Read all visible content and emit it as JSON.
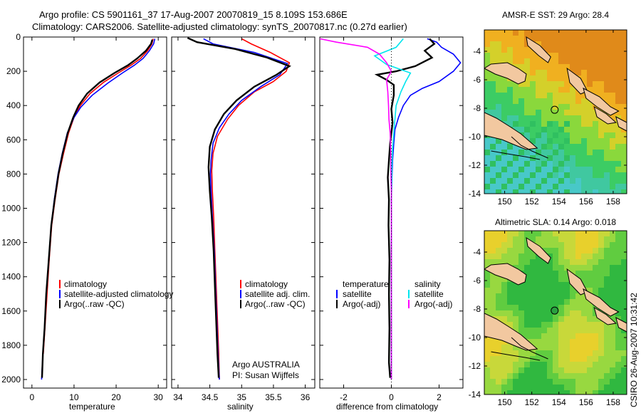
{
  "header": {
    "line1": "Argo profile: CS 5901161_37 17-Aug-2007 20070819_15 8.109S 153.686E",
    "line2": "Climatology: CARS2006. Satellite-adjusted climatology: synTS_20070817.nc (0.27d earlier)"
  },
  "footer": {
    "stamp": "CSIRO 26-Aug-2007 10:31:42",
    "credit_org": "Argo AUSTRALIA",
    "credit_pi": "PI: Susan Wijffels"
  },
  "colors": {
    "climatology": "#ff0000",
    "satellite": "#0000ff",
    "argo": "#000000",
    "salinity_satellite": "#00e5ee",
    "salinity_argo": "#ff00ff",
    "land": "#f2c8a0"
  },
  "chart_data": [
    {
      "type": "line",
      "panel": "temperature",
      "xlabel": "temperature",
      "ylabel": "",
      "xlim": [
        -2,
        32
      ],
      "ylim": [
        2050,
        0
      ],
      "xticks": [
        0,
        10,
        20,
        30
      ],
      "yticks": [
        0,
        200,
        400,
        600,
        800,
        1000,
        1200,
        1400,
        1600,
        1800,
        2000
      ],
      "legend": [
        "climatology",
        "satellite-adjusted climatology",
        "Argo(..raw -QC)"
      ],
      "legend_position": "lower-left",
      "series": [
        {
          "name": "climatology",
          "color": "#ff0000",
          "points": [
            [
              28.8,
              10
            ],
            [
              28.5,
              40
            ],
            [
              27.5,
              80
            ],
            [
              25.8,
              125
            ],
            [
              23.5,
              165
            ],
            [
              20.5,
              210
            ],
            [
              17.0,
              265
            ],
            [
              13.8,
              330
            ],
            [
              11.5,
              400
            ],
            [
              10.0,
              470
            ],
            [
              8.7,
              560
            ],
            [
              7.5,
              680
            ],
            [
              6.4,
              800
            ],
            [
              5.5,
              950
            ],
            [
              4.7,
              1100
            ],
            [
              4.1,
              1300
            ],
            [
              3.6,
              1500
            ],
            [
              3.1,
              1700
            ],
            [
              2.7,
              1850
            ]
          ]
        },
        {
          "name": "satellite-adjusted climatology",
          "color": "#0000ff",
          "points": [
            [
              29.2,
              10
            ],
            [
              28.9,
              40
            ],
            [
              27.9,
              80
            ],
            [
              26.4,
              125
            ],
            [
              24.3,
              165
            ],
            [
              21.5,
              210
            ],
            [
              18.0,
              270
            ],
            [
              14.3,
              340
            ],
            [
              11.6,
              410
            ],
            [
              10.0,
              470
            ],
            [
              8.4,
              560
            ],
            [
              7.2,
              680
            ],
            [
              6.2,
              800
            ],
            [
              5.3,
              950
            ],
            [
              4.6,
              1100
            ],
            [
              4.0,
              1300
            ],
            [
              3.4,
              1500
            ],
            [
              3.0,
              1700
            ],
            [
              2.6,
              1850
            ],
            [
              2.3,
              2000
            ]
          ]
        },
        {
          "name": "Argo(..raw -QC)",
          "color": "#000000",
          "points": [
            [
              28.6,
              15
            ],
            [
              28.3,
              40
            ],
            [
              27.1,
              80
            ],
            [
              25.0,
              125
            ],
            [
              22.8,
              165
            ],
            [
              19.6,
              210
            ],
            [
              16.1,
              265
            ],
            [
              13.1,
              330
            ],
            [
              11.1,
              400
            ],
            [
              9.8,
              470
            ],
            [
              8.5,
              560
            ],
            [
              7.3,
              680
            ],
            [
              6.3,
              800
            ],
            [
              5.4,
              950
            ],
            [
              4.6,
              1100
            ],
            [
              4.0,
              1300
            ],
            [
              3.4,
              1500
            ],
            [
              3.0,
              1700
            ],
            [
              2.6,
              1850
            ],
            [
              2.4,
              1990
            ]
          ]
        }
      ]
    },
    {
      "type": "line",
      "panel": "salinity",
      "xlabel": "salinity",
      "ylabel": "",
      "xlim": [
        33.9,
        36.15
      ],
      "ylim": [
        2050,
        0
      ],
      "xticks": [
        34,
        34.5,
        35,
        35.5,
        36
      ],
      "legend": [
        "climatology",
        "satellite adj. clim.",
        "Argo(..raw -QC)"
      ],
      "legend_position": "lower-right",
      "series": [
        {
          "name": "climatology",
          "color": "#ff0000",
          "points": [
            [
              35.0,
              10
            ],
            [
              35.15,
              40
            ],
            [
              35.45,
              90
            ],
            [
              35.75,
              150
            ],
            [
              35.7,
              200
            ],
            [
              35.5,
              260
            ],
            [
              35.2,
              320
            ],
            [
              34.95,
              400
            ],
            [
              34.78,
              480
            ],
            [
              34.62,
              580
            ],
            [
              34.55,
              680
            ],
            [
              34.53,
              780
            ],
            [
              34.54,
              900
            ],
            [
              34.56,
              1050
            ],
            [
              34.58,
              1250
            ],
            [
              34.6,
              1450
            ],
            [
              34.62,
              1650
            ],
            [
              34.64,
              1850
            ],
            [
              34.65,
              2000
            ]
          ]
        },
        {
          "name": "satellite adj. clim.",
          "color": "#0000ff",
          "points": [
            [
              34.4,
              10
            ],
            [
              34.55,
              40
            ],
            [
              35.2,
              90
            ],
            [
              35.72,
              155
            ],
            [
              35.6,
              220
            ],
            [
              35.3,
              290
            ],
            [
              35.0,
              370
            ],
            [
              34.8,
              450
            ],
            [
              34.65,
              530
            ],
            [
              34.55,
              620
            ],
            [
              34.52,
              720
            ],
            [
              34.51,
              800
            ],
            [
              34.52,
              900
            ],
            [
              34.54,
              1050
            ],
            [
              34.57,
              1250
            ],
            [
              34.59,
              1450
            ],
            [
              34.61,
              1650
            ],
            [
              34.63,
              1850
            ],
            [
              34.65,
              2000
            ]
          ]
        },
        {
          "name": "Argo(..raw -QC)",
          "color": "#000000",
          "points": [
            [
              34.15,
              5
            ],
            [
              34.3,
              30
            ],
            [
              34.9,
              70
            ],
            [
              35.4,
              120
            ],
            [
              35.75,
              170
            ],
            [
              35.55,
              220
            ],
            [
              35.2,
              290
            ],
            [
              34.92,
              370
            ],
            [
              34.72,
              450
            ],
            [
              34.58,
              540
            ],
            [
              34.5,
              640
            ],
            [
              34.48,
              760
            ],
            [
              34.5,
              900
            ],
            [
              34.53,
              1050
            ],
            [
              34.56,
              1250
            ],
            [
              34.58,
              1450
            ],
            [
              34.6,
              1650
            ],
            [
              34.62,
              1850
            ],
            [
              34.64,
              1990
            ]
          ]
        }
      ]
    },
    {
      "type": "line",
      "panel": "difference",
      "xlabel": "difference from climatology",
      "ylabel": "",
      "xlim": [
        -3,
        3
      ],
      "ylim": [
        2050,
        0
      ],
      "xticks": [
        -2,
        0,
        2
      ],
      "legend": [
        "temperature",
        "satellite",
        "Argo(-adj)",
        "salinity",
        "satellite",
        "Argo(-adj)"
      ],
      "legend_position": "lower-center",
      "series": [
        {
          "name": "temperature satellite",
          "color": "#0000ff",
          "points": [
            [
              1.5,
              10
            ],
            [
              1.9,
              30
            ],
            [
              2.1,
              60
            ],
            [
              2.6,
              100
            ],
            [
              2.9,
              150
            ],
            [
              2.6,
              200
            ],
            [
              2.0,
              260
            ],
            [
              1.3,
              300
            ],
            [
              0.8,
              340
            ],
            [
              0.5,
              400
            ],
            [
              0.3,
              470
            ],
            [
              0.15,
              540
            ],
            [
              0.1,
              620
            ],
            [
              0.05,
              720
            ],
            [
              0.02,
              820
            ],
            [
              0.0,
              950
            ],
            [
              0.0,
              1100
            ],
            [
              0.0,
              1300
            ],
            [
              0.0,
              1500
            ],
            [
              0.0,
              1700
            ],
            [
              0.0,
              1900
            ],
            [
              0.0,
              2000
            ]
          ]
        },
        {
          "name": "temperature Argo(-adj)",
          "color": "#000000",
          "points": [
            [
              1.6,
              10
            ],
            [
              1.8,
              40
            ],
            [
              1.4,
              80
            ],
            [
              1.7,
              120
            ],
            [
              1.0,
              170
            ],
            [
              0.2,
              200
            ],
            [
              -0.6,
              220
            ],
            [
              -0.2,
              250
            ],
            [
              0.1,
              280
            ],
            [
              0.1,
              340
            ],
            [
              0.0,
              420
            ],
            [
              0.05,
              500
            ],
            [
              -0.05,
              620
            ],
            [
              -0.1,
              720
            ],
            [
              -0.15,
              820
            ],
            [
              -0.1,
              950
            ],
            [
              -0.12,
              1100
            ],
            [
              -0.08,
              1300
            ],
            [
              -0.1,
              1500
            ],
            [
              -0.08,
              1700
            ],
            [
              -0.1,
              1900
            ],
            [
              -0.05,
              1990
            ]
          ]
        },
        {
          "name": "salinity satellite",
          "color": "#00e5ee",
          "points": [
            [
              0.5,
              10
            ],
            [
              0.2,
              60
            ],
            [
              -0.7,
              110
            ],
            [
              -0.2,
              160
            ],
            [
              0.8,
              210
            ],
            [
              0.6,
              260
            ],
            [
              0.4,
              320
            ],
            [
              0.2,
              400
            ],
            [
              0.15,
              480
            ],
            [
              0.1,
              560
            ],
            [
              0.05,
              650
            ],
            [
              0.02,
              760
            ],
            [
              0.0,
              900
            ],
            [
              0.0,
              1100
            ],
            [
              0.0,
              1300
            ],
            [
              0.0,
              1500
            ],
            [
              0.0,
              1700
            ],
            [
              0.0,
              1900
            ],
            [
              0.0,
              2000
            ]
          ]
        },
        {
          "name": "salinity Argo(-adj)",
          "color": "#ff00ff",
          "points": [
            [
              -3.0,
              10
            ],
            [
              -2.3,
              30
            ],
            [
              -1.0,
              60
            ],
            [
              -0.5,
              100
            ],
            [
              -0.2,
              150
            ],
            [
              0.0,
              200
            ],
            [
              -0.2,
              250
            ],
            [
              -0.15,
              320
            ],
            [
              -0.12,
              400
            ],
            [
              -0.1,
              480
            ],
            [
              -0.05,
              560
            ],
            [
              -0.03,
              650
            ],
            [
              -0.02,
              760
            ],
            [
              0.0,
              900
            ],
            [
              0.0,
              1100
            ],
            [
              0.0,
              1300
            ],
            [
              0.0,
              1500
            ],
            [
              0.0,
              1700
            ],
            [
              0.0,
              1900
            ],
            [
              0.0,
              2000
            ]
          ]
        }
      ]
    },
    {
      "type": "heatmap",
      "panel": "sst_map",
      "title": "AMSR-E SST: 29 Argo: 28.4",
      "xlim": [
        148.5,
        159
      ],
      "ylim": [
        -14,
        -2.5
      ],
      "xticks": [
        150,
        152,
        154,
        156,
        158
      ],
      "yticks": [
        -4,
        -6,
        -8,
        -10,
        -12,
        -14
      ],
      "marker": {
        "lon": 153.686,
        "lat": -8.109,
        "style": "open-circle"
      }
    },
    {
      "type": "heatmap",
      "panel": "sla_map",
      "title": "Altimetric SLA: 0.14 Argo: 0.018",
      "xlim": [
        148.5,
        159
      ],
      "ylim": [
        -14,
        -2.5
      ],
      "xticks": [
        150,
        152,
        154,
        156,
        158
      ],
      "yticks": [
        -4,
        -6,
        -8,
        -10,
        -12,
        -14
      ],
      "marker": {
        "lon": 153.686,
        "lat": -8.109,
        "style": "filled-green-circle"
      }
    }
  ]
}
